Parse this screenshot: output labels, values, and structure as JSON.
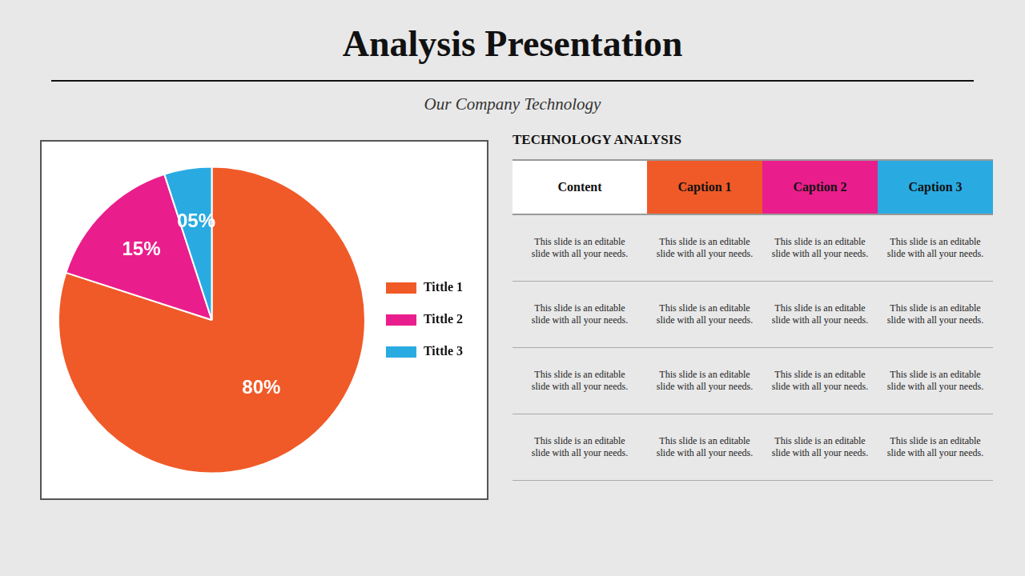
{
  "chart_data": [
    {
      "type": "pie",
      "title": "Analysis Presentation",
      "subtitle": "Our Company Technology",
      "categories": [
        "Tittle 1",
        "Tittle 2",
        "Tittle 3"
      ],
      "values": [
        80,
        15,
        5
      ],
      "value_labels": [
        "80%",
        "15%",
        "05%"
      ],
      "colors": [
        "#F05A28",
        "#E91E8C",
        "#29ABE2"
      ],
      "data_labels": true,
      "legend": "right"
    },
    {
      "type": "table",
      "title": "TECHNOLOGY ANALYSIS",
      "categories": [
        "Content",
        "Caption 1",
        "Caption 2",
        "Caption 3"
      ],
      "colors": [
        "#ffffff",
        "#F05A28",
        "#E91E8C",
        "#29ABE2"
      ],
      "rows": [
        [
          "This slide is an editable\nslide with all your needs.",
          "This slide is an editable\nslide with all your needs.",
          "This slide is an editable\nslide with all your needs.",
          "This slide is an editable\nslide with all your needs."
        ],
        [
          "This slide is an editable\nslide with all your needs.",
          "This slide is an editable\nslide with all your needs.",
          "This slide is an editable\nslide with all your needs.",
          "This slide is an editable\nslide with all your needs."
        ],
        [
          "This slide is an editable\nslide with all your needs.",
          "This slide is an editable\nslide with all your needs.",
          "This slide is an editable\nslide with all your needs.",
          "This slide is an editable\nslide with all your needs."
        ],
        [
          "This slide is an editable\nslide with all your needs.",
          "This slide is an editable\nslide with all your needs.",
          "This slide is an editable\nslide with all your needs.",
          "This slide is an editable\nslide with all your needs."
        ]
      ]
    }
  ]
}
